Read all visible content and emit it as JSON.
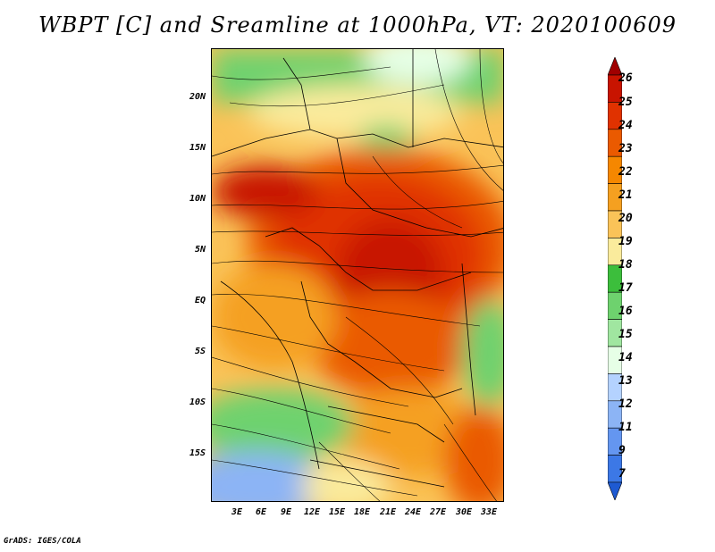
{
  "title": "WBPT [C] and Sreamline at 1000hPa, VT: 2020100609",
  "footer": "GrADS: IGES/COLA",
  "lat_labels": [
    "20N",
    "15N",
    "10N",
    "5N",
    "EQ",
    "5S",
    "10S",
    "15S"
  ],
  "lon_labels": [
    "3E",
    "6E",
    "9E",
    "12E",
    "15E",
    "18E",
    "21E",
    "24E",
    "27E",
    "30E",
    "33E"
  ],
  "colorbar": {
    "labels": [
      "26",
      "25",
      "24",
      "23",
      "22",
      "21",
      "20",
      "19",
      "18",
      "17",
      "16",
      "15",
      "14",
      "13",
      "12",
      "11",
      "9",
      "7"
    ],
    "colors": [
      "#a00000",
      "#c81400",
      "#e03200",
      "#ea5a00",
      "#f58700",
      "#f5a020",
      "#fac358",
      "#faeb9c",
      "#3cbe3c",
      "#6ed26e",
      "#a0e6a0",
      "#e6ffe6",
      "#b4d2ff",
      "#8cb4f5",
      "#6496f0",
      "#3c78e6",
      "#1e5ad2"
    ]
  }
}
